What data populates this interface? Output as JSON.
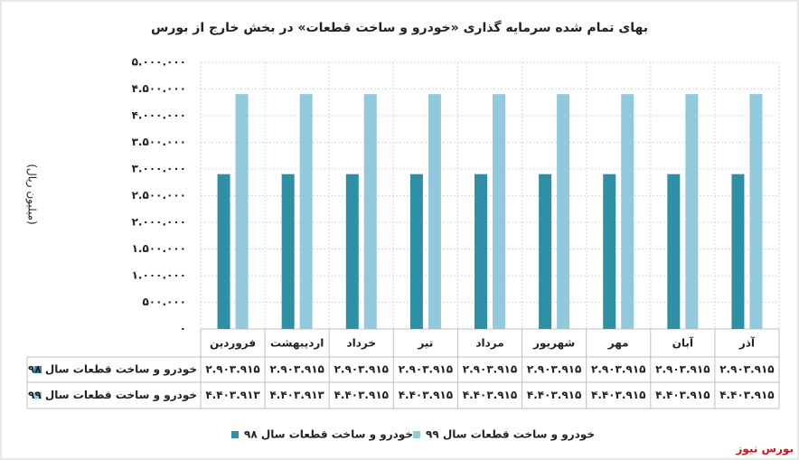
{
  "chart_data": {
    "type": "bar",
    "title": "بهای تمام شده سرمایه گذاری «خودرو و ساخت قطعات» در بخش خارج از بورس",
    "y_label": "(میلیون ریال)",
    "source": "بورس نیوز",
    "categories": [
      "فروردین",
      "اردیبهشت",
      "خرداد",
      "تیر",
      "مرداد",
      "شهریور",
      "مهر",
      "آبان",
      "آذر"
    ],
    "series": [
      {
        "name": "خودرو و ساخت قطعات سال ۹۸",
        "color": "#2f8fa4",
        "values": [
          2903915,
          2903915,
          2903915,
          2903915,
          2903915,
          2903915,
          2903915,
          2903915,
          2903915
        ],
        "value_labels": [
          "۲.۹۰۳.۹۱۵",
          "۲.۹۰۳.۹۱۵",
          "۲.۹۰۳.۹۱۵",
          "۲.۹۰۳.۹۱۵",
          "۲.۹۰۳.۹۱۵",
          "۲.۹۰۳.۹۱۵",
          "۲.۹۰۳.۹۱۵",
          "۲.۹۰۳.۹۱۵",
          "۲.۹۰۳.۹۱۵"
        ]
      },
      {
        "name": "خودرو و ساخت قطعات سال ۹۹",
        "color": "#92c9dd",
        "values": [
          4403913,
          4403913,
          4403915,
          4403915,
          4403915,
          4403915,
          4403915,
          4403915,
          4403915
        ],
        "value_labels": [
          "۴.۴۰۳.۹۱۳",
          "۴.۴۰۳.۹۱۳",
          "۴.۴۰۳.۹۱۵",
          "۴.۴۰۳.۹۱۵",
          "۴.۴۰۳.۹۱۵",
          "۴.۴۰۳.۹۱۵",
          "۴.۴۰۳.۹۱۵",
          "۴.۴۰۳.۹۱۵",
          "۴.۴۰۳.۹۱۵"
        ]
      }
    ],
    "ylim": [
      0,
      5000000
    ],
    "yticks": [
      {
        "value": 0,
        "label": "۰"
      },
      {
        "value": 500000,
        "label": "۵۰۰.۰۰۰"
      },
      {
        "value": 1000000,
        "label": "۱.۰۰۰.۰۰۰"
      },
      {
        "value": 1500000,
        "label": "۱.۵۰۰.۰۰۰"
      },
      {
        "value": 2000000,
        "label": "۲.۰۰۰.۰۰۰"
      },
      {
        "value": 2500000,
        "label": "۲.۵۰۰.۰۰۰"
      },
      {
        "value": 3000000,
        "label": "۳.۰۰۰.۰۰۰"
      },
      {
        "value": 3500000,
        "label": "۳.۵۰۰.۰۰۰"
      },
      {
        "value": 4000000,
        "label": "۴.۰۰۰.۰۰۰"
      },
      {
        "value": 4500000,
        "label": "۴.۵۰۰.۰۰۰"
      },
      {
        "value": 5000000,
        "label": "۵.۰۰۰.۰۰۰"
      }
    ],
    "grid": true
  }
}
